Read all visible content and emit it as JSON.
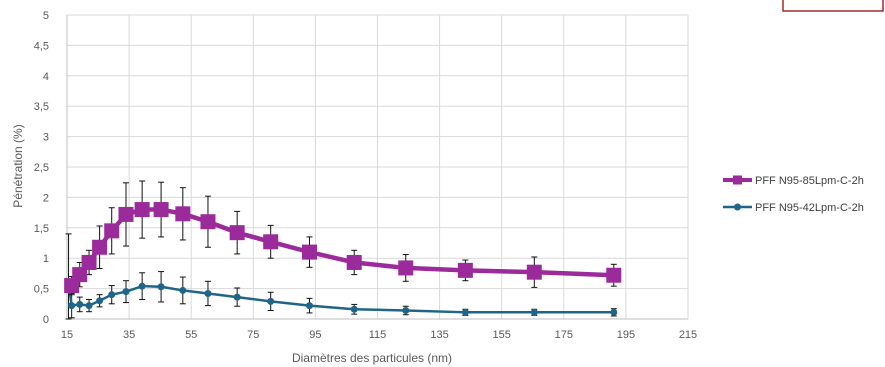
{
  "chart_data": {
    "type": "line",
    "title": "",
    "xlabel": "Diamètres des particules (nm)",
    "ylabel": "Pénétration (%)",
    "xlim": [
      15,
      215
    ],
    "ylim": [
      0,
      5
    ],
    "x_ticks": [
      "15",
      "35",
      "55",
      "75",
      "95",
      "115",
      "135",
      "155",
      "175",
      "195",
      "215"
    ],
    "y_ticks": [
      "0",
      "0,5",
      "1",
      "1,5",
      "2",
      "2,5",
      "3",
      "3,5",
      "4",
      "4,5",
      "5"
    ],
    "grid": true,
    "legend_position": "right",
    "series": [
      {
        "name": "PFF N95-85Lpm-C-2h",
        "color": "#9B2A9B",
        "marker": "square",
        "x": [
          16.5,
          19.1,
          22.1,
          25.5,
          29.4,
          34.0,
          39.2,
          45.3,
          52.3,
          60.4,
          69.8,
          80.6,
          93.1,
          107.5,
          124.1,
          143.3,
          165.5,
          191.1
        ],
        "y": [
          0.55,
          0.73,
          0.93,
          1.18,
          1.45,
          1.72,
          1.8,
          1.8,
          1.73,
          1.6,
          1.42,
          1.27,
          1.1,
          0.93,
          0.84,
          0.8,
          0.77,
          0.72
        ],
        "err": [
          0.15,
          0.2,
          0.2,
          0.35,
          0.38,
          0.52,
          0.47,
          0.45,
          0.43,
          0.42,
          0.35,
          0.27,
          0.25,
          0.2,
          0.22,
          0.17,
          0.25,
          0.18
        ]
      },
      {
        "name": "PFF N95-42Lpm-C-2h",
        "color": "#1F6587",
        "marker": "circle",
        "x": [
          15.5,
          16.5,
          19.1,
          22.1,
          25.5,
          29.4,
          34.0,
          39.2,
          45.3,
          52.3,
          60.4,
          69.8,
          80.6,
          93.1,
          107.5,
          124.1,
          143.3,
          165.5,
          191.1
        ],
        "y": [
          0.6,
          0.22,
          0.24,
          0.22,
          0.3,
          0.4,
          0.45,
          0.54,
          0.53,
          0.47,
          0.42,
          0.36,
          0.29,
          0.22,
          0.16,
          0.14,
          0.11,
          0.11,
          0.11
        ],
        "err": [
          0.8,
          0.2,
          0.12,
          0.1,
          0.1,
          0.15,
          0.18,
          0.22,
          0.25,
          0.22,
          0.2,
          0.15,
          0.15,
          0.12,
          0.08,
          0.07,
          0.05,
          0.05,
          0.06
        ]
      }
    ]
  }
}
